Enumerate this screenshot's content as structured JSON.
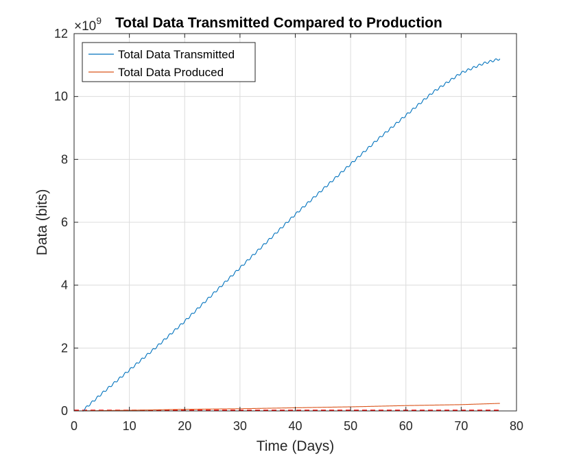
{
  "chart_data": {
    "type": "line",
    "title": "Total Data Transmitted Compared to Production",
    "xlabel": "Time (Days)",
    "ylabel": "Data (bits)",
    "y_exponent_label": {
      "base": "×10",
      "power": "9"
    },
    "xlim": [
      0,
      80
    ],
    "ylim": [
      0,
      12
    ],
    "xticks": [
      "0",
      "10",
      "20",
      "30",
      "40",
      "50",
      "60",
      "70",
      "80"
    ],
    "yticks": [
      "0",
      "2",
      "4",
      "6",
      "8",
      "10",
      "12"
    ],
    "grid": true,
    "legend_position": "top-left",
    "series": [
      {
        "name": "Total Data Transmitted",
        "color": "#0072BD",
        "x": [
          1.5,
          5,
          10,
          15,
          20,
          25,
          30,
          35,
          40,
          45,
          50,
          55,
          60,
          65,
          70,
          74,
          77
        ],
        "y": [
          0.0,
          0.55,
          1.3,
          2.05,
          2.85,
          3.7,
          4.55,
          5.4,
          6.25,
          7.05,
          7.85,
          8.65,
          9.4,
          10.15,
          10.75,
          11.05,
          11.2
        ]
      },
      {
        "name": "Total Data Produced",
        "color": "#D95319",
        "x": [
          0,
          10,
          20,
          30,
          40,
          50,
          60,
          70,
          77
        ],
        "y": [
          0.0,
          0.02,
          0.05,
          0.07,
          0.1,
          0.13,
          0.17,
          0.2,
          0.24
        ]
      }
    ],
    "reference_line": {
      "color": "#FF0000",
      "style": "dashed",
      "y": 0.0
    }
  }
}
